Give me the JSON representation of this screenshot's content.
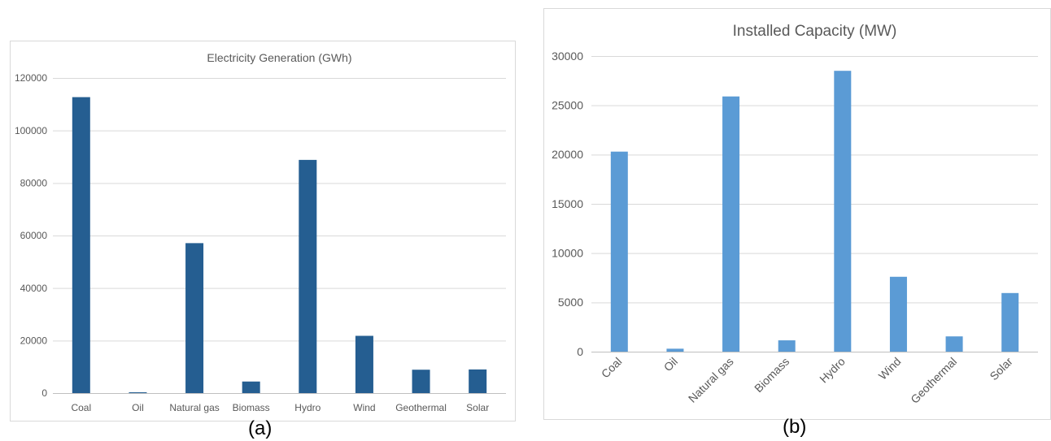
{
  "chart_data": [
    {
      "type": "bar",
      "title": "Electricity Generation (GWh)",
      "caption": "(a)",
      "categories": [
        "Coal",
        "Oil",
        "Natural gas",
        "Biomass",
        "Hydro",
        "Wind",
        "Geothermal",
        "Solar"
      ],
      "values": [
        112700,
        300,
        57100,
        4400,
        88800,
        21800,
        8900,
        9000
      ],
      "ylim": [
        0,
        120000
      ],
      "yticks": [
        "0",
        "20000",
        "40000",
        "60000",
        "80000",
        "100000",
        "120000"
      ],
      "grid": true,
      "bar_color": "#255e91"
    },
    {
      "type": "bar",
      "title": "Installed Capacity (MW)",
      "caption": "(b)",
      "categories": [
        "Coal",
        "Oil",
        "Natural gas",
        "Biomass",
        "Hydro",
        "Wind",
        "Geothermal",
        "Solar"
      ],
      "values": [
        20300,
        300,
        25900,
        1150,
        28500,
        7600,
        1550,
        5950
      ],
      "ylim": [
        0,
        30000
      ],
      "yticks": [
        "0",
        "5000",
        "10000",
        "15000",
        "20000",
        "25000",
        "30000"
      ],
      "grid": true,
      "bar_color": "#5b9bd5"
    }
  ]
}
